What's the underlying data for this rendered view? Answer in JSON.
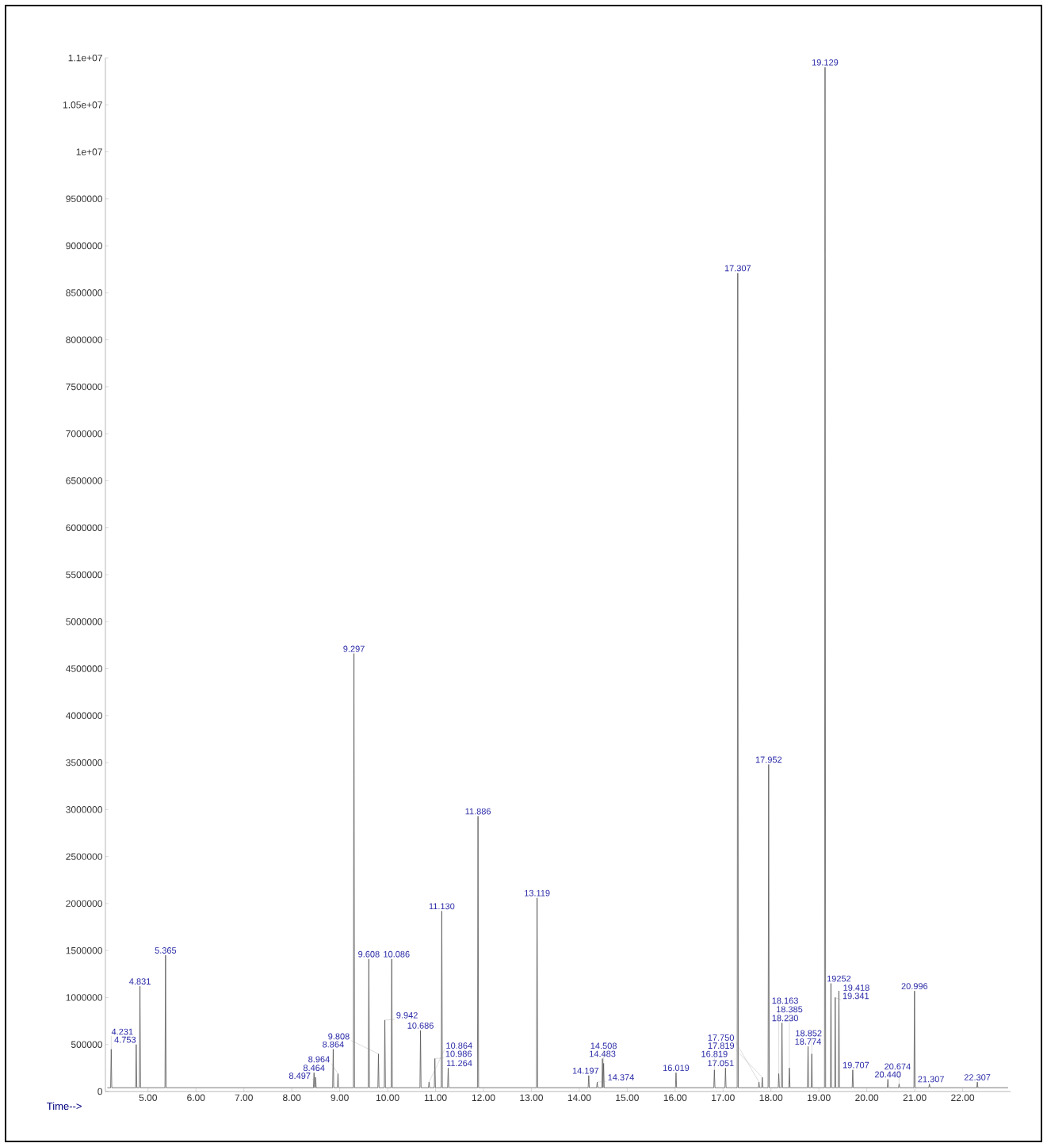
{
  "chart_data": {
    "type": "line",
    "xlabel": "Time-->",
    "xlim": [
      4.11,
      23.0
    ],
    "ylim": [
      0,
      11000000
    ],
    "xticks": [
      {
        "value": 5,
        "label": "5.00"
      },
      {
        "value": 6,
        "label": "6.00"
      },
      {
        "value": 7,
        "label": "7.00"
      },
      {
        "value": 8,
        "label": "8.00"
      },
      {
        "value": 9,
        "label": "9.00"
      },
      {
        "value": 10,
        "label": "10.00"
      },
      {
        "value": 11,
        "label": "11.00"
      },
      {
        "value": 12,
        "label": "12.00"
      },
      {
        "value": 13,
        "label": "13.00"
      },
      {
        "value": 14,
        "label": "14.00"
      },
      {
        "value": 15,
        "label": "15.00"
      },
      {
        "value": 16,
        "label": "16.00"
      },
      {
        "value": 17,
        "label": "17.00"
      },
      {
        "value": 18,
        "label": "18.00"
      },
      {
        "value": 19,
        "label": "19.00"
      },
      {
        "value": 20,
        "label": "20.00"
      },
      {
        "value": 21,
        "label": "21.00"
      },
      {
        "value": 22,
        "label": "22.00"
      }
    ],
    "yticks": [
      0,
      500000,
      1000000,
      1500000,
      2000000,
      2500000,
      3000000,
      3500000,
      4000000,
      4500000,
      5000000,
      5500000,
      6000000,
      6500000,
      7000000,
      7500000,
      8000000,
      8500000,
      9000000,
      9500000,
      {
        "value": 10000000,
        "label": "1e+07"
      },
      {
        "value": 10500000,
        "label": "1.05e+07"
      },
      {
        "value": 11000000,
        "label": "1.1e+07"
      }
    ],
    "series": [
      {
        "color": "#555555",
        "x": [
          4.15,
          4.219,
          4.231,
          4.243,
          4.741,
          4.753,
          4.765,
          4.819,
          4.831,
          4.843,
          5.353,
          5.365,
          5.377,
          8.452,
          8.464,
          8.476,
          8.485,
          8.497,
          8.509,
          8.852,
          8.864,
          8.876,
          8.952,
          8.964,
          8.976,
          9.285,
          9.297,
          9.309,
          9.596,
          9.608,
          9.62,
          9.796,
          9.808,
          9.82,
          9.93,
          9.942,
          9.954,
          10.074,
          10.086,
          10.098,
          10.674,
          10.686,
          10.698,
          10.852,
          10.864,
          10.876,
          10.974,
          10.986,
          10.998,
          11.118,
          11.13,
          11.142,
          11.252,
          11.264,
          11.276,
          11.874,
          11.886,
          11.898,
          13.107,
          13.119,
          13.131,
          14.185,
          14.197,
          14.209,
          14.362,
          14.374,
          14.386,
          14.471,
          14.483,
          14.495,
          14.496,
          14.508,
          14.52,
          16.007,
          16.019,
          16.031,
          16.807,
          16.819,
          16.831,
          17.039,
          17.051,
          17.063,
          17.295,
          17.307,
          17.319,
          17.738,
          17.75,
          17.762,
          17.807,
          17.819,
          17.831,
          17.94,
          17.952,
          17.964,
          18.151,
          18.163,
          18.175,
          18.218,
          18.23,
          18.242,
          18.373,
          18.385,
          18.397,
          18.762,
          18.774,
          18.786,
          18.84,
          18.852,
          18.864,
          19.117,
          19.129,
          19.141,
          19.24,
          19.252,
          19.264,
          19.329,
          19.341,
          19.353,
          19.406,
          19.418,
          19.43,
          19.695,
          19.707,
          19.719,
          20.428,
          20.44,
          20.452,
          20.662,
          20.674,
          20.686,
          20.984,
          20.996,
          21.008,
          21.295,
          21.307,
          21.319,
          22.295,
          22.307,
          22.319,
          22.95
        ],
        "values": [
          40000,
          40000,
          450000,
          40000,
          40000,
          500000,
          40000,
          40000,
          1120000,
          40000,
          40000,
          1450000,
          40000,
          40000,
          200000,
          40000,
          40000,
          150000,
          40000,
          40000,
          450000,
          40000,
          40000,
          190000,
          40000,
          40000,
          4660000,
          40000,
          40000,
          1410000,
          40000,
          40000,
          400000,
          40000,
          40000,
          760000,
          40000,
          40000,
          1410000,
          40000,
          40000,
          650000,
          40000,
          40000,
          100000,
          40000,
          40000,
          350000,
          40000,
          40000,
          1920000,
          40000,
          40000,
          250000,
          40000,
          40000,
          2930000,
          40000,
          40000,
          2060000,
          40000,
          40000,
          170000,
          40000,
          40000,
          100000,
          40000,
          40000,
          350000,
          40000,
          40000,
          300000,
          40000,
          40000,
          200000,
          40000,
          40000,
          230000,
          40000,
          40000,
          250000,
          40000,
          40000,
          8710000,
          40000,
          40000,
          100000,
          40000,
          40000,
          150000,
          40000,
          40000,
          3480000,
          40000,
          40000,
          190000,
          40000,
          40000,
          730000,
          40000,
          40000,
          250000,
          40000,
          40000,
          480000,
          40000,
          40000,
          400000,
          40000,
          40000,
          10900000,
          40000,
          40000,
          1150000,
          40000,
          40000,
          1000000,
          40000,
          40000,
          1070000,
          40000,
          40000,
          230000,
          40000,
          40000,
          130000,
          40000,
          40000,
          80000,
          40000,
          40000,
          1070000,
          40000,
          40000,
          80000,
          40000,
          40000,
          100000,
          40000,
          40000
        ]
      }
    ],
    "annotations": [
      {
        "text": "4.231",
        "x": 4.231,
        "y": 450000
      },
      {
        "text": "4.753",
        "x": 4.753,
        "y": 500000
      },
      {
        "text": "4.831",
        "x": 4.831,
        "y": 1120000
      },
      {
        "text": "5.365",
        "x": 5.365,
        "y": 1450000
      },
      {
        "text": "8.464",
        "x": 8.464,
        "y": 200000
      },
      {
        "text": "8.497",
        "x": 8.497,
        "y": 150000
      },
      {
        "text": "8.864",
        "x": 8.864,
        "y": 450000
      },
      {
        "text": "8.964",
        "x": 8.964,
        "y": 190000
      },
      {
        "text": "9.297",
        "x": 9.297,
        "y": 4660000
      },
      {
        "text": "9.608",
        "x": 9.608,
        "y": 1410000
      },
      {
        "text": "9.808",
        "x": 9.808,
        "y": 400000
      },
      {
        "text": "9.942",
        "x": 9.942,
        "y": 760000
      },
      {
        "text": "10.086",
        "x": 10.086,
        "y": 1410000
      },
      {
        "text": "10.686",
        "x": 10.686,
        "y": 650000
      },
      {
        "text": "10.864",
        "x": 10.864,
        "y": 100000
      },
      {
        "text": "10.986",
        "x": 10.986,
        "y": 350000
      },
      {
        "text": "11.130",
        "x": 11.13,
        "y": 1920000
      },
      {
        "text": "11.264",
        "x": 11.264,
        "y": 250000
      },
      {
        "text": "11.886",
        "x": 11.886,
        "y": 2930000
      },
      {
        "text": "13.119",
        "x": 13.119,
        "y": 2060000
      },
      {
        "text": "14.197",
        "x": 14.197,
        "y": 170000
      },
      {
        "text": "14.374",
        "x": 14.374,
        "y": 100000
      },
      {
        "text": "14.483",
        "x": 14.483,
        "y": 350000
      },
      {
        "text": "14.508",
        "x": 14.508,
        "y": 300000
      },
      {
        "text": "16.019",
        "x": 16.019,
        "y": 200000
      },
      {
        "text": "16.819",
        "x": 16.819,
        "y": 230000
      },
      {
        "text": "17.051",
        "x": 17.051,
        "y": 250000
      },
      {
        "text": "17.307",
        "x": 17.307,
        "y": 8710000
      },
      {
        "text": "17.750",
        "x": 17.75,
        "y": 100000
      },
      {
        "text": "17.819",
        "x": 17.819,
        "y": 150000
      },
      {
        "text": "17.952",
        "x": 17.952,
        "y": 3480000
      },
      {
        "text": "18.163",
        "x": 18.163,
        "y": 190000
      },
      {
        "text": "18.230",
        "x": 18.23,
        "y": 730000
      },
      {
        "text": "18.385",
        "x": 18.385,
        "y": 250000
      },
      {
        "text": "18.774",
        "x": 18.774,
        "y": 480000
      },
      {
        "text": "18.852",
        "x": 18.852,
        "y": 400000
      },
      {
        "text": "19.129",
        "x": 19.129,
        "y": 10900000
      },
      {
        "text": "19252",
        "x": 19.252,
        "y": 1150000
      },
      {
        "text": "19.341",
        "x": 19.341,
        "y": 1000000
      },
      {
        "text": "19.418",
        "x": 19.418,
        "y": 1070000
      },
      {
        "text": "19.707",
        "x": 19.707,
        "y": 230000
      },
      {
        "text": "20.440",
        "x": 20.44,
        "y": 130000
      },
      {
        "text": "20.674",
        "x": 20.674,
        "y": 80000
      },
      {
        "text": "20.996",
        "x": 20.996,
        "y": 1070000
      },
      {
        "text": "21.307",
        "x": 21.307,
        "y": 80000
      },
      {
        "text": "22.307",
        "x": 22.307,
        "y": 100000
      }
    ]
  }
}
